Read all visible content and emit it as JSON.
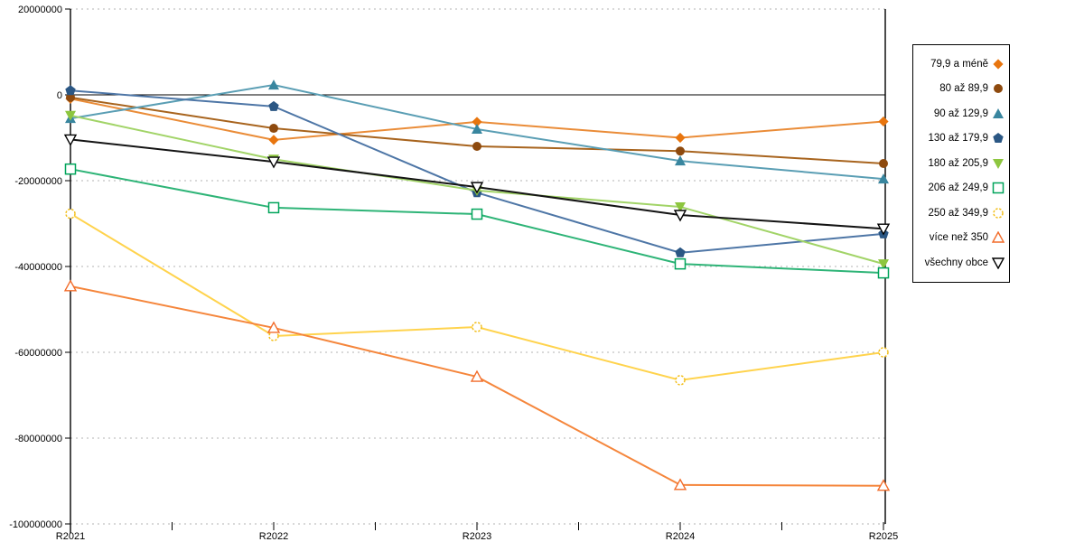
{
  "chart_data": {
    "type": "line",
    "title": "",
    "xlabel": "",
    "ylabel": "",
    "categories": [
      "R2021",
      "R2022",
      "R2023",
      "R2024",
      "R2025"
    ],
    "y_tick_labels": [
      "20000000",
      "0",
      "-20000000",
      "-40000000",
      "-60000000",
      "-80000000",
      "-100000000"
    ],
    "y_tick_values": [
      20000000,
      0,
      -20000000,
      -40000000,
      -60000000,
      -80000000,
      -100000000
    ],
    "ylim": [
      -100000000,
      20000000
    ],
    "grid": "horizontal-dotted",
    "zero_line": "solid-black",
    "legend_position": "right-outside-boxed",
    "series": [
      {
        "name": "79,9 a méně",
        "marker": "diamond",
        "color": "#e8750e",
        "line_color": "#ea8c38",
        "values": [
          -900000,
          -10500000,
          -6300000,
          -10000000,
          -6200000
        ]
      },
      {
        "name": "80 až 89,9",
        "marker": "circle",
        "color": "#8e4a0e",
        "line_color": "#a8641e",
        "values": [
          -600000,
          -7800000,
          -12000000,
          -13100000,
          -16000000
        ]
      },
      {
        "name": "90 až 129,9",
        "marker": "triangle-up",
        "color": "#39869f",
        "line_color": "#5a9eb4",
        "values": [
          -5500000,
          2300000,
          -8000000,
          -15400000,
          -19600000
        ]
      },
      {
        "name": "130 až 179,9",
        "marker": "pentagon",
        "color": "#2b5784",
        "line_color": "#4e76a6",
        "values": [
          1000000,
          -2700000,
          -22800000,
          -36800000,
          -32400000
        ]
      },
      {
        "name": "180 až 205,9",
        "marker": "triangle-down",
        "color": "#8dc63f",
        "line_color": "#a2d468",
        "values": [
          -4800000,
          -15000000,
          -22300000,
          -26100000,
          -39400000
        ]
      },
      {
        "name": "206 až 249,9",
        "marker": "square-open",
        "color": "#00a45a",
        "line_color": "#2eb477",
        "values": [
          -17300000,
          -26300000,
          -27800000,
          -39400000,
          -41500000
        ]
      },
      {
        "name": "250 až 349,9",
        "marker": "circle-open-dashed",
        "color": "#f2be19",
        "line_color": "#ffd34d",
        "values": [
          -27700000,
          -56200000,
          -54100000,
          -66500000,
          -60000000
        ]
      },
      {
        "name": "více než 350",
        "marker": "triangle-up-open",
        "color": "#f26c2a",
        "line_color": "#f5863c",
        "values": [
          -44600000,
          -54300000,
          -65700000,
          -90900000,
          -91100000
        ]
      },
      {
        "name": "všechny obce",
        "marker": "triangle-down-open",
        "color": "#000000",
        "line_color": "#141414",
        "values": [
          -10400000,
          -15600000,
          -21500000,
          -28000000,
          -31200000
        ]
      }
    ]
  }
}
